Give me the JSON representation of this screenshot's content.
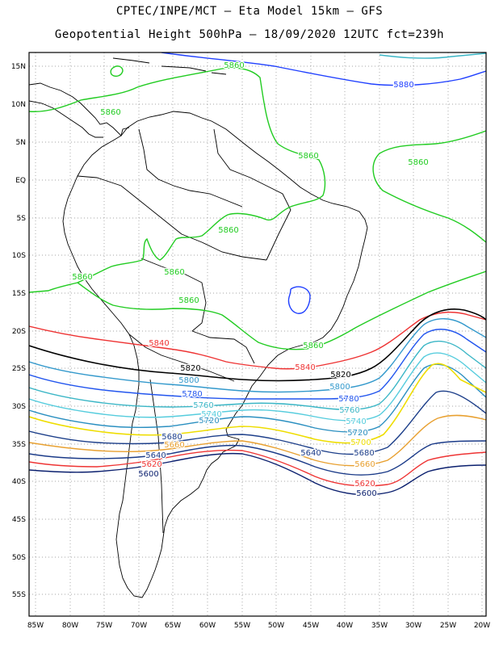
{
  "title_line1": "CPTEC/INPE/MCT –  Eta Model 15km – GFS",
  "title_line2": "Geopotential Height 500hPa – 18/09/2020 12UTC fct=239h",
  "lat_ticks": [
    "15N",
    "10N",
    "5N",
    "EQ",
    "5S",
    "10S",
    "15S",
    "20S",
    "25S",
    "30S",
    "35S",
    "40S",
    "45S",
    "50S",
    "55S"
  ],
  "lon_ticks": [
    "85W",
    "80W",
    "75W",
    "70W",
    "65W",
    "60W",
    "55W",
    "50W",
    "45W",
    "40W",
    "35W",
    "30W",
    "25W",
    "20W"
  ],
  "contours": [
    {
      "level": "5880",
      "color": "#2040ff"
    },
    {
      "level": "5860",
      "color": "#22cc22"
    },
    {
      "level": "5840",
      "color": "#ee3333"
    },
    {
      "level": "5820",
      "color": "#000000"
    },
    {
      "level": "5800",
      "color": "#3399cc"
    },
    {
      "level": "5780",
      "color": "#2255ee"
    },
    {
      "level": "5760",
      "color": "#3bb6c6"
    },
    {
      "level": "5740",
      "color": "#55ccdd"
    },
    {
      "level": "5720",
      "color": "#2a8fc0"
    },
    {
      "level": "5700",
      "color": "#eedd00"
    },
    {
      "level": "5680",
      "color": "#1d3f8a"
    },
    {
      "level": "5660",
      "color": "#e8a030"
    },
    {
      "level": "5640",
      "color": "#1a3a88"
    },
    {
      "level": "5620",
      "color": "#ee3333"
    },
    {
      "level": "5600",
      "color": "#0a1f6e"
    }
  ]
}
